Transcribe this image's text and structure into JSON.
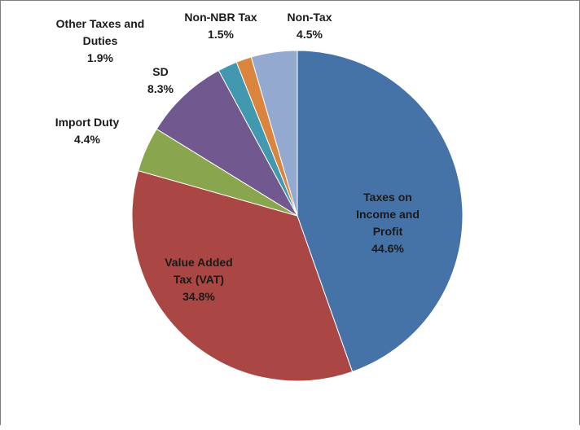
{
  "chart_data": {
    "type": "pie",
    "start_angle_deg": 0,
    "direction": "clockwise",
    "slices": [
      {
        "label": "Taxes on Income and Profit",
        "value": 44.6,
        "value_label": "44.6%",
        "color": "#4572A7"
      },
      {
        "label": "Value Added Tax (VAT)",
        "value": 34.8,
        "value_label": "34.8%",
        "color": "#AA4643"
      },
      {
        "label": "Import Duty",
        "value": 4.4,
        "value_label": "4.4%",
        "color": "#89A54E"
      },
      {
        "label": "SD",
        "value": 8.3,
        "value_label": "8.3%",
        "color": "#71588F"
      },
      {
        "label": "Other Taxes and Duties",
        "value": 1.9,
        "value_label": "1.9%",
        "color": "#4198AF"
      },
      {
        "label": "Non-NBR Tax",
        "value": 1.5,
        "value_label": "1.5%",
        "color": "#DB843D"
      },
      {
        "label": "Non-Tax",
        "value": 4.5,
        "value_label": "4.5%",
        "color": "#93A9CF"
      }
    ],
    "data_labels": [
      {
        "lines": [
          "Taxes on",
          "Income and",
          "Profit",
          "44.6%"
        ]
      },
      {
        "lines": [
          "Value Added",
          "Tax (VAT)",
          "34.8%"
        ]
      },
      {
        "lines": [
          "Import Duty",
          "4.4%"
        ]
      },
      {
        "lines": [
          "SD",
          "8.3%"
        ]
      },
      {
        "lines": [
          "Other Taxes and",
          "Duties",
          "1.9%"
        ]
      },
      {
        "lines": [
          "Non-NBR Tax",
          "1.5%"
        ]
      },
      {
        "lines": [
          "Non-Tax",
          "4.5%"
        ]
      }
    ]
  }
}
